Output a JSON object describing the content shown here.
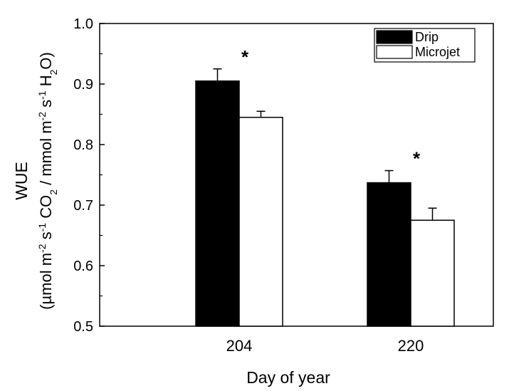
{
  "chart_data": {
    "type": "bar",
    "categories": [
      "204",
      "220"
    ],
    "series": [
      {
        "name": "Drip",
        "values": [
          0.905,
          0.737
        ],
        "errors": [
          0.02,
          0.02
        ],
        "fill": "#000000"
      },
      {
        "name": "Microjet",
        "values": [
          0.845,
          0.675
        ],
        "errors": [
          0.01,
          0.02
        ],
        "fill": "#ffffff"
      }
    ],
    "xlabel": "Day of year",
    "ylabel": {
      "line1": "WUE",
      "line2": [
        {
          "t": "(µmol m"
        },
        {
          "t": "-2",
          "sup": true
        },
        {
          "t": " s"
        },
        {
          "t": "-1",
          "sup": true
        },
        {
          "t": " CO"
        },
        {
          "t": "2",
          "sub": true
        },
        {
          "t": " / mmol m"
        },
        {
          "t": "-2",
          "sup": true
        },
        {
          "t": " s"
        },
        {
          "t": "-1",
          "sup": true
        },
        {
          "t": " H"
        },
        {
          "t": "2",
          "sub": true
        },
        {
          "t": "O)"
        }
      ]
    },
    "ylim": [
      0.5,
      1.0
    ],
    "yticks": [
      "0.5",
      "0.6",
      "0.7",
      "0.8",
      "0.9",
      "1.0"
    ],
    "significance": [
      "*",
      "*"
    ],
    "legend_position": "top-right",
    "grid": false
  }
}
